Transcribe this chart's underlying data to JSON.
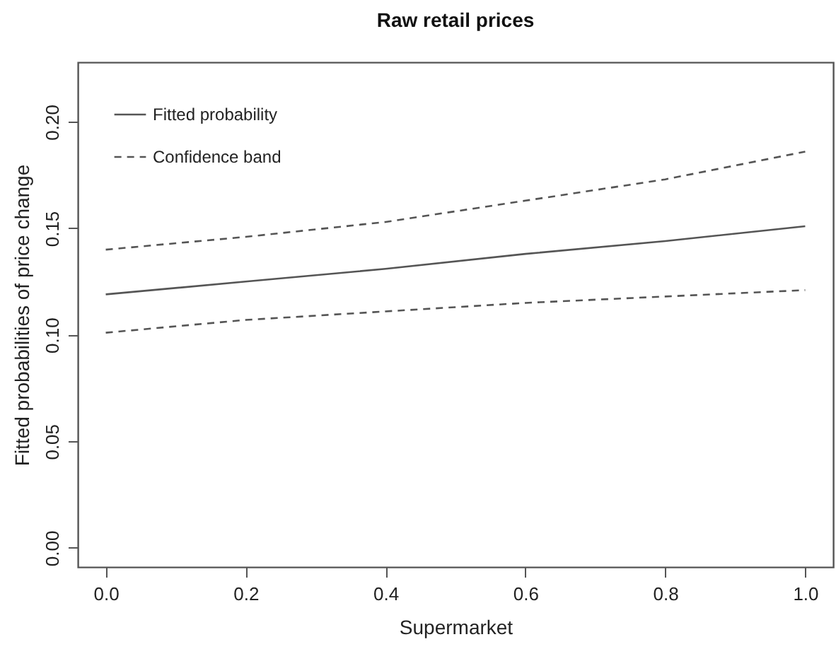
{
  "chart_data": {
    "type": "line",
    "title": "Raw retail prices",
    "xlabel": "Supermarket",
    "ylabel": "Fitted probabilities of price change",
    "x": [
      0,
      0.2,
      0.4,
      0.6,
      0.8,
      1.0
    ],
    "series": [
      {
        "name": "Fitted probability",
        "color": "#555555",
        "line_style": "solid",
        "values": [
          0.119,
          0.125,
          0.131,
          0.138,
          0.144,
          0.151
        ]
      },
      {
        "name": "Confidence band",
        "color": "#555555",
        "line_style": "dashed",
        "values": [
          0.14,
          0.146,
          0.153,
          0.163,
          0.173,
          0.186
        ]
      },
      {
        "color": "#555555",
        "line_style": "dashed",
        "values": [
          0.101,
          0.107,
          0.111,
          0.115,
          0.118,
          0.121
        ]
      }
    ],
    "xlim": [
      -0.04,
      1.04
    ],
    "ylim": [
      -0.009,
      0.228
    ],
    "xticks": [
      {
        "value": 0,
        "label": "0.0"
      },
      0.2,
      0.4,
      0.6,
      0.8,
      {
        "value": 1,
        "label": "1.0"
      }
    ],
    "yticks": [
      {
        "value": 0,
        "label": "0.00"
      },
      0.05,
      {
        "value": 0.1,
        "label": "0.10"
      },
      0.15,
      {
        "value": 0.2,
        "label": "0.20"
      }
    ],
    "legend": "top left",
    "grid": false,
    "marker": "none"
  }
}
